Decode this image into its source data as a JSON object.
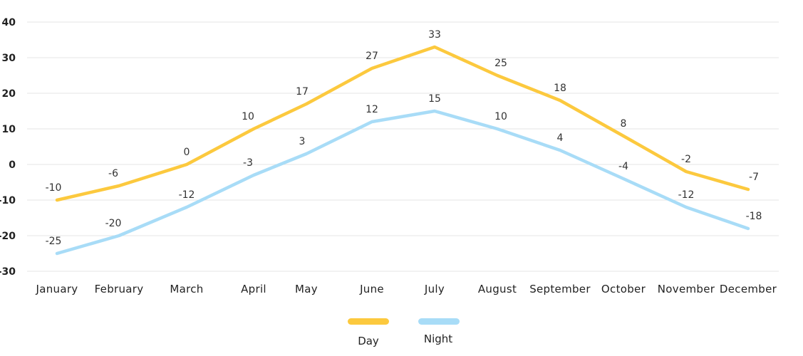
{
  "chart_data": {
    "type": "line",
    "title": "",
    "xlabel": "",
    "ylabel": "",
    "categories": [
      "January",
      "February",
      "March",
      "April",
      "May",
      "June",
      "July",
      "August",
      "September",
      "October",
      "November",
      "December"
    ],
    "ylim": [
      -30,
      40
    ],
    "yticks": [
      40,
      30,
      20,
      10,
      0,
      -10,
      -20,
      -30
    ],
    "grid": true,
    "legend_position": "bottom",
    "series": [
      {
        "name": "Day",
        "color": "#fcc93e",
        "values": [
          -10,
          -6,
          0,
          10,
          17,
          27,
          33,
          25,
          18,
          8,
          -2,
          -7
        ]
      },
      {
        "name": "Night",
        "color": "#a8dcf7",
        "values": [
          -25,
          -20,
          -12,
          -3,
          3,
          12,
          15,
          10,
          4,
          -4,
          -12,
          -18
        ]
      }
    ]
  }
}
